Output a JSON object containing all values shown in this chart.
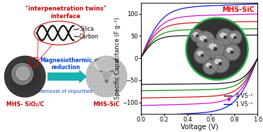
{
  "title_text": "\"interpenetration twins\"\ninterface",
  "title_color": "#cc0000",
  "silica_label": "Silica",
  "carbon_label": "Carbon",
  "arrow_text": "Magnesiothermic\nreduction",
  "arrow_text2": "Removal of impurities",
  "left_label": "MHS- SiO₂/C",
  "right_label": "MHS-SiC",
  "mhs_sic_label": "MHS-SiC",
  "xlabel": "Voltage (V)",
  "ylabel": "Specific Capacitance (F g⁻¹)",
  "xlim": [
    0.0,
    1.0
  ],
  "ylim": [
    -125,
    125
  ],
  "yticks": [
    -100,
    -50,
    0,
    50,
    100
  ],
  "xticks": [
    0.0,
    0.2,
    0.4,
    0.6,
    0.8,
    1.0
  ],
  "legend_4v": "4 VS⁻¹",
  "legend_1v": "1 VS⁻¹",
  "arrow_color": "#00aaaa",
  "cv_colors": [
    "#0000dd",
    "#cc00cc",
    "#cc0000",
    "#008800",
    "#000000"
  ],
  "background_color": "#ffffff"
}
